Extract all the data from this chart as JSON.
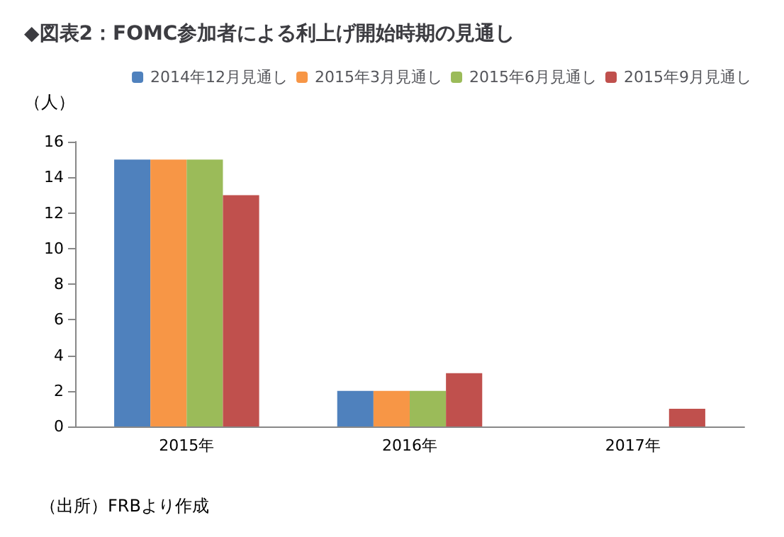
{
  "chart_data": {
    "type": "bar",
    "title": "◆図表2：FOMC参加者による利上げ開始時期の見通し",
    "ylabel": "（人）",
    "categories": [
      "2015年",
      "2016年",
      "2017年"
    ],
    "series": [
      {
        "name": "2014年12月見通し",
        "color": "#4f81bd",
        "values": [
          15,
          2,
          0
        ]
      },
      {
        "name": "2015年3月見通し",
        "color": "#f79646",
        "values": [
          15,
          2,
          0
        ]
      },
      {
        "name": "2015年6月見通し",
        "color": "#9bbb59",
        "values": [
          15,
          2,
          0
        ]
      },
      {
        "name": "2015年9月見通し",
        "color": "#c0504d",
        "values": [
          13,
          3,
          1
        ]
      }
    ],
    "ylim": [
      0,
      16
    ],
    "yticks": [
      0,
      2,
      4,
      6,
      8,
      10,
      12,
      14,
      16
    ],
    "grid": false,
    "legend": "top right",
    "annotations": [
      "（出所）FRBより作成"
    ]
  }
}
